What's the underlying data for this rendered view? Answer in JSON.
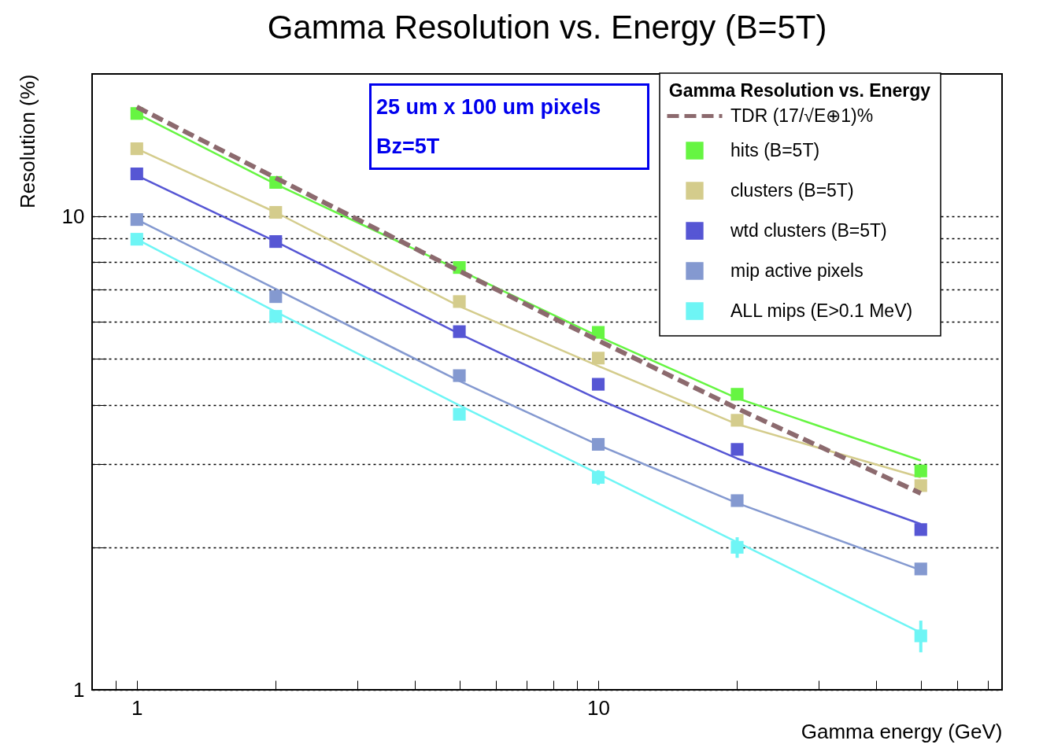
{
  "chart_data": {
    "type": "scatter",
    "title": "Gamma Resolution vs. Energy (B=5T)",
    "xlabel": "Gamma energy (GeV)",
    "ylabel": "Resolution (%)",
    "legend_title": "Gamma Resolution vs. Energy",
    "annotations": [
      "25 um x 100 um pixels",
      "Bz=5T"
    ],
    "log": "xy",
    "grid": "y",
    "legend": "top right",
    "xlim": [
      0.8,
      75
    ],
    "ylim": [
      1,
      20
    ],
    "xticks": [
      {
        "value": 0.8,
        "label": null
      },
      {
        "value": 0.9,
        "label": null
      },
      1,
      {
        "value": 2,
        "label": null
      },
      {
        "value": 3,
        "label": null
      },
      {
        "value": 4,
        "label": null
      },
      {
        "value": 5,
        "label": null
      },
      {
        "value": 6,
        "label": null
      },
      {
        "value": 7,
        "label": null
      },
      {
        "value": 8,
        "label": null
      },
      {
        "value": 9,
        "label": null
      },
      10,
      {
        "value": 20,
        "label": null
      },
      {
        "value": 30,
        "label": null
      },
      {
        "value": 40,
        "label": null
      },
      {
        "value": 50,
        "label": null
      },
      {
        "value": 60,
        "label": null
      },
      {
        "value": 70,
        "label": null
      }
    ],
    "yticks": [
      1,
      {
        "value": 2,
        "label": null
      },
      {
        "value": 3,
        "label": null
      },
      {
        "value": 4,
        "label": null
      },
      {
        "value": 5,
        "label": null
      },
      {
        "value": 6,
        "label": null
      },
      {
        "value": 7,
        "label": null
      },
      {
        "value": 8,
        "label": null
      },
      {
        "value": 9,
        "label": null
      },
      10
    ],
    "series": [
      {
        "type": "line",
        "color": "#66f542",
        "x": [
          1,
          2,
          5,
          10,
          20,
          50
        ],
        "values": [
          16.5,
          11.7,
          7.7,
          5.58,
          4.13,
          3.05
        ]
      },
      {
        "type": "line",
        "color": "#d4cc8c",
        "x": [
          1,
          2,
          5,
          10,
          20,
          50
        ],
        "values": [
          13.9,
          10.2,
          6.46,
          4.83,
          3.64,
          2.81
        ]
      },
      {
        "type": "line",
        "color": "#5656d4",
        "x": [
          1,
          2,
          5,
          10,
          20,
          50
        ],
        "values": [
          12.2,
          8.85,
          5.65,
          4.11,
          3.08,
          2.24
        ]
      },
      {
        "type": "line",
        "color": "#8499d0",
        "x": [
          1,
          2,
          5,
          10,
          20,
          50
        ],
        "values": [
          9.85,
          7.03,
          4.49,
          3.29,
          2.48,
          1.79
        ]
      },
      {
        "type": "line",
        "color": "#6ef5f5",
        "x": [
          1,
          2,
          5,
          10,
          20,
          50
        ],
        "values": [
          8.95,
          6.29,
          3.99,
          2.86,
          2.05,
          1.32
        ]
      },
      {
        "name": "hits (B=5T)",
        "marker": "square",
        "color": "#66f542",
        "x": [
          1,
          2,
          5,
          10,
          20,
          50
        ],
        "values": [
          16.5,
          11.8,
          7.8,
          5.69,
          4.21,
          2.9
        ]
      },
      {
        "name": "clusters (B=5T)",
        "marker": "square",
        "color": "#d4cc8c",
        "x": [
          1,
          2,
          5,
          10,
          20,
          50
        ],
        "values": [
          13.9,
          10.2,
          6.61,
          5.02,
          3.71,
          2.7
        ]
      },
      {
        "name": "wtd clusters (B=5T)",
        "marker": "square",
        "color": "#5656d4",
        "x": [
          1,
          2,
          5,
          10,
          20,
          50
        ],
        "values": [
          12.3,
          8.85,
          5.71,
          4.42,
          3.22,
          2.18
        ]
      },
      {
        "name": "mip active pixels",
        "marker": "square",
        "color": "#8499d0",
        "x": [
          1,
          2,
          5,
          10,
          20,
          50
        ],
        "values": [
          9.85,
          6.77,
          4.61,
          3.3,
          2.51,
          1.8
        ]
      },
      {
        "name": "ALL mips (E>0.1 MeV)",
        "marker": "square",
        "color": "#6ef5f5",
        "x": [
          1,
          2,
          5,
          10,
          20,
          50
        ],
        "values": [
          8.95,
          6.15,
          3.82,
          2.81,
          2.0,
          1.3
        ],
        "errors": [
          null,
          null,
          null,
          0.1,
          0.1,
          0.1
        ]
      },
      {
        "name": "TDR (17/√E⊕1)%",
        "type": "line",
        "line_style": "dashed",
        "color": "#8c6a6e",
        "x": [
          1,
          2,
          5,
          10,
          20,
          50
        ],
        "values": [
          17.03,
          12.06,
          7.67,
          5.47,
          3.93,
          2.6
        ]
      }
    ]
  }
}
